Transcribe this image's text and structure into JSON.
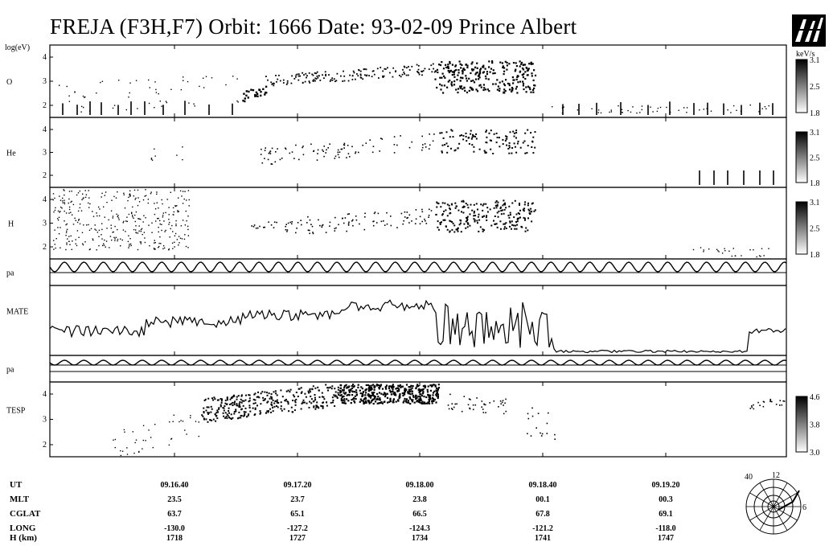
{
  "title": "FREJA (F3H,F7)  Orbit:  1666 Date: 93-02-09  Prince Albert",
  "units_label": "log(eV)",
  "colors": {
    "ink": "#000000",
    "paper": "#ffffff"
  },
  "chart_data": {
    "type": "spectrogram-stack",
    "panels": [
      {
        "id": "o",
        "label": "O",
        "y_ticks": [
          "4",
          "3",
          "2"
        ],
        "colorbar": {
          "label": "keV/s",
          "ticks": [
            "3.1",
            "2.5",
            "1.8"
          ]
        }
      },
      {
        "id": "he",
        "label": "He",
        "y_ticks": [
          "4",
          "3",
          "2"
        ],
        "colorbar": {
          "ticks": [
            "3.1",
            "2.5",
            "1.8"
          ]
        }
      },
      {
        "id": "h",
        "label": "H",
        "y_ticks": [
          "4",
          "3",
          "2"
        ],
        "colorbar": {
          "ticks": [
            "3.1",
            "2.5",
            "1.8"
          ]
        }
      },
      {
        "id": "pa1",
        "label": "pa"
      },
      {
        "id": "mate",
        "label": "MATE"
      },
      {
        "id": "pa2",
        "label": "pa"
      },
      {
        "id": "tesp",
        "label": "TESP",
        "y_ticks": [
          "4",
          "3",
          "2"
        ],
        "colorbar": {
          "ticks": [
            "4.6",
            "3.8",
            "3.0"
          ]
        }
      }
    ],
    "ephemeris": {
      "row_labels": [
        "UT",
        "MLT",
        "CGLAT",
        "LONG",
        "H (km)"
      ],
      "columns": [
        {
          "UT": "09.16.40",
          "MLT": "23.5",
          "CGLAT": "63.7",
          "LONG": "-130.0",
          "H": "1718"
        },
        {
          "UT": "09.17.20",
          "MLT": "23.7",
          "CGLAT": "65.1",
          "LONG": "-127.2",
          "H": "1727"
        },
        {
          "UT": "09.18.00",
          "MLT": "23.8",
          "CGLAT": "66.5",
          "LONG": "-124.3",
          "H": "1734"
        },
        {
          "UT": "09.18.40",
          "MLT": "00.1",
          "CGLAT": "67.8",
          "LONG": "-121.2",
          "H": "1741"
        },
        {
          "UT": "09.19.20",
          "MLT": "00.3",
          "CGLAT": "69.1",
          "LONG": "-118.0",
          "H": "1747"
        }
      ]
    },
    "polar_plot": {
      "labels": [
        "40",
        "12",
        "6"
      ]
    }
  }
}
